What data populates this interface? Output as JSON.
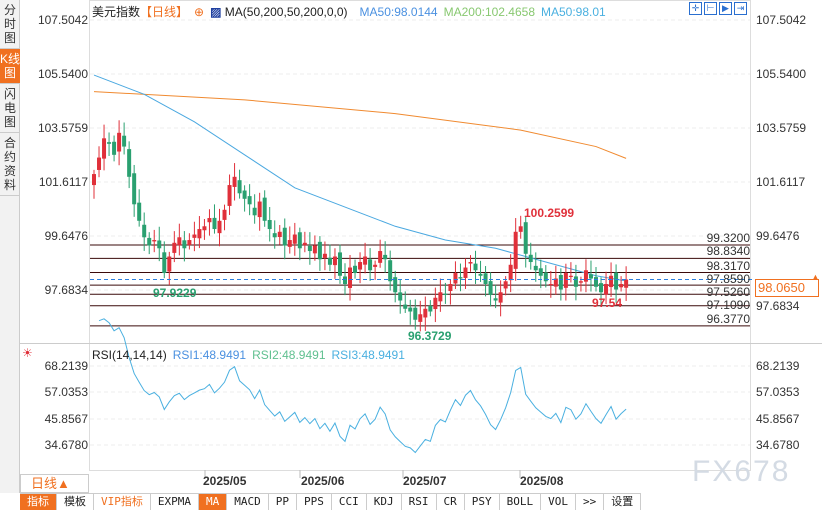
{
  "sidebar": {
    "tabs": [
      {
        "label": "分时图"
      },
      {
        "label": "K线图",
        "active": true
      },
      {
        "label": "闪电图"
      },
      {
        "label": "合约资料"
      }
    ]
  },
  "header": {
    "title": "美元指数",
    "period": "【日线】",
    "indicator": "MA(50,200,50,200,0,0)",
    "ma50": "MA50:98.0144",
    "ma200": "MA200:102.4658",
    "ma50b": "MA50:98.01"
  },
  "toolbar_icons": [
    "crosshair-icon",
    "zoom-left-icon",
    "zoom-right-icon",
    "move-end-icon"
  ],
  "price_axis": [
    "107.5042",
    "105.5400",
    "103.5759",
    "101.6117",
    "99.6476",
    "97.6834"
  ],
  "levels": [
    {
      "value": 99.32,
      "label": "99.3200"
    },
    {
      "value": 98.834,
      "label": "98.8340"
    },
    {
      "value": 98.317,
      "label": "98.3170"
    },
    {
      "value": 97.859,
      "label": "97.8590"
    },
    {
      "value": 97.526,
      "label": "97.5260"
    },
    {
      "value": 97.109,
      "label": "97.1090"
    },
    {
      "value": 96.377,
      "label": "96.3770"
    }
  ],
  "current_price": "98.0650",
  "annotations": {
    "high": "100.2599",
    "low1": "97.9229",
    "low2": "96.3729",
    "low3": "97.54"
  },
  "rsi": {
    "title": "RSI(14,14,14)",
    "rsi1": "RSI1:48.9491",
    "rsi2": "RSI2:48.9491",
    "rsi3": "RSI3:48.9491",
    "axis": [
      "68.2139",
      "57.0353",
      "45.8567",
      "34.6780"
    ]
  },
  "xaxis": [
    "2025/05",
    "2025/06",
    "2025/07",
    "2025/08"
  ],
  "period_button": "日线▲",
  "bottom_tabs": [
    "指标",
    "模板",
    "VIP指标",
    "EXPMA",
    "MA",
    "MACD",
    "PP",
    "PPS",
    "CCI",
    "KDJ",
    "RSI",
    "CR",
    "PSY",
    "BOLL",
    "VOL",
    ">>",
    "设置"
  ],
  "watermark": "FX678",
  "colors": {
    "up": "#e0303a",
    "down": "#2aa070",
    "ma50": "#4aa8e0",
    "ma200": "#f08a30",
    "accent": "#f07020"
  },
  "chart_data": {
    "type": "candlestick",
    "ylim": [
      96.0,
      107.5042
    ],
    "closes": [
      101.9,
      102.5,
      103.2,
      103.0,
      102.6,
      103.4,
      102.9,
      101.8,
      100.8,
      100.2,
      99.6,
      99.3,
      99.5,
      99.2,
      98.3,
      98.9,
      99.4,
      99.6,
      99.2,
      99.5,
      99.7,
      99.9,
      100.0,
      100.3,
      99.9,
      100.2,
      100.6,
      101.5,
      101.8,
      101.2,
      101.0,
      100.8,
      100.4,
      100.9,
      100.2,
      99.9,
      99.6,
      99.8,
      99.3,
      99.5,
      99.7,
      99.2,
      99.4,
      99.1,
      99.3,
      98.8,
      99.0,
      98.6,
      98.9,
      98.2,
      97.9,
      98.5,
      98.3,
      98.7,
      98.9,
      98.4,
      98.6,
      99.1,
      98.8,
      98.0,
      97.6,
      97.3,
      97.0,
      96.9,
      96.6,
      96.8,
      97.0,
      96.9,
      97.4,
      97.6,
      97.5,
      97.9,
      98.3,
      98.1,
      98.5,
      98.7,
      98.4,
      98.2,
      97.9,
      97.5,
      97.3,
      97.6,
      98.0,
      98.6,
      99.8,
      100.0,
      99.0,
      98.7,
      98.4,
      98.2,
      98.0,
      97.9,
      98.1,
      97.7,
      98.3,
      98.2,
      97.8,
      98.0,
      98.4,
      98.1,
      97.8,
      97.6,
      97.9,
      98.2,
      97.7,
      97.9,
      98.065
    ],
    "ma50": [
      [
        0,
        105.5
      ],
      [
        10,
        104.8
      ],
      [
        20,
        103.8
      ],
      [
        30,
        102.6
      ],
      [
        40,
        101.4
      ],
      [
        50,
        100.7
      ],
      [
        60,
        100.0
      ],
      [
        70,
        99.5
      ],
      [
        80,
        99.2
      ],
      [
        90,
        98.7
      ],
      [
        100,
        98.2
      ],
      [
        106,
        98.01
      ]
    ],
    "ma200": [
      [
        0,
        104.9
      ],
      [
        30,
        104.6
      ],
      [
        60,
        104.1
      ],
      [
        85,
        103.5
      ],
      [
        100,
        102.9
      ],
      [
        106,
        102.47
      ]
    ]
  }
}
